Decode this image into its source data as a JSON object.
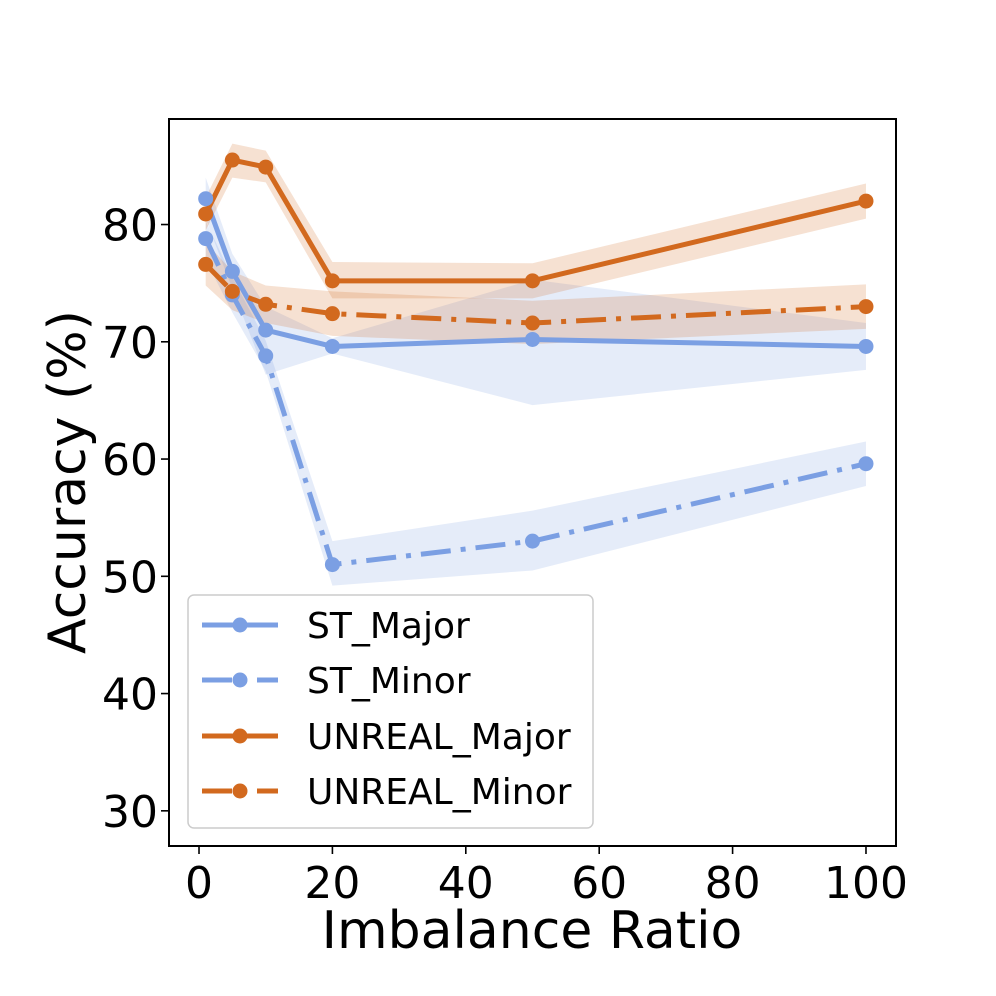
{
  "chart_data": {
    "type": "line",
    "title": "",
    "xlabel": "Imbalance Ratio",
    "ylabel": "Accuracy (%)",
    "xlim": [
      -4.5,
      104.5
    ],
    "ylim": [
      27.0,
      89.0
    ],
    "xticks": [
      0,
      20,
      40,
      60,
      80,
      100
    ],
    "xtick_labels": [
      "0",
      "20",
      "40",
      "60",
      "80",
      "100"
    ],
    "yticks": [
      30,
      40,
      50,
      60,
      70,
      80
    ],
    "ytick_labels": [
      "30",
      "40",
      "50",
      "60",
      "70",
      "80"
    ],
    "grid": false,
    "legend_position": "lower-left",
    "x": [
      1,
      5,
      10,
      20,
      50,
      100
    ],
    "series": [
      {
        "name": "ST_Major",
        "color": "#7b9fe3",
        "style": "solid",
        "values": [
          82.2,
          76.0,
          71.0,
          69.6,
          70.2,
          69.6
        ],
        "band_lower": [
          80.5,
          74.5,
          67.2,
          69.0,
          64.6,
          67.6
        ],
        "band_upper": [
          84.0,
          77.5,
          73.0,
          70.3,
          75.3,
          71.6
        ]
      },
      {
        "name": "ST_Minor",
        "color": "#7b9fe3",
        "style": "dashdot",
        "values": [
          78.8,
          74.0,
          68.8,
          51.0,
          53.0,
          59.6
        ],
        "band_lower": [
          77.0,
          72.5,
          67.5,
          49.2,
          50.5,
          57.7
        ],
        "band_upper": [
          80.3,
          75.5,
          70.1,
          53.0,
          55.6,
          61.5
        ]
      },
      {
        "name": "UNREAL_Major",
        "color": "#d2691e",
        "style": "solid",
        "values": [
          80.9,
          85.5,
          84.9,
          75.2,
          75.2,
          82.0
        ],
        "band_lower": [
          79.5,
          84.0,
          83.6,
          73.7,
          73.7,
          80.5
        ],
        "band_upper": [
          82.3,
          86.9,
          86.3,
          76.8,
          76.7,
          83.5
        ]
      },
      {
        "name": "UNREAL_Minor",
        "color": "#d2691e",
        "style": "dashdot",
        "values": [
          76.6,
          74.3,
          73.2,
          72.4,
          71.6,
          73.0
        ],
        "band_lower": [
          74.8,
          72.7,
          71.6,
          70.5,
          69.8,
          71.1
        ],
        "band_upper": [
          78.5,
          76.0,
          74.8,
          74.3,
          73.5,
          74.9
        ]
      }
    ]
  }
}
